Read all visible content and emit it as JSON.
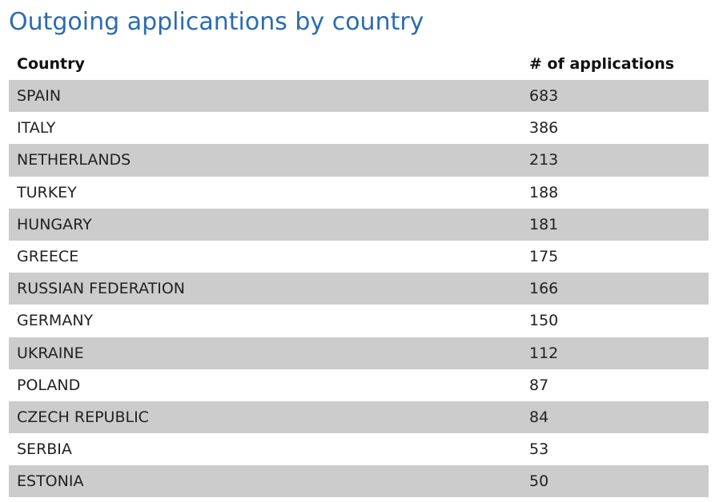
{
  "title": "Outgoing applicantions by country",
  "table": {
    "columns": [
      "Country",
      "# of applications"
    ],
    "rows": [
      {
        "country": "SPAIN",
        "count": "683"
      },
      {
        "country": "ITALY",
        "count": "386"
      },
      {
        "country": "NETHERLANDS",
        "count": "213"
      },
      {
        "country": "TURKEY",
        "count": "188"
      },
      {
        "country": "HUNGARY",
        "count": "181"
      },
      {
        "country": "GREECE",
        "count": "175"
      },
      {
        "country": "RUSSIAN FEDERATION",
        "count": "166"
      },
      {
        "country": "GERMANY",
        "count": "150"
      },
      {
        "country": "UKRAINE",
        "count": "112"
      },
      {
        "country": "POLAND",
        "count": "87"
      },
      {
        "country": "CZECH REPUBLIC",
        "count": "84"
      },
      {
        "country": "SERBIA",
        "count": "53"
      },
      {
        "country": "ESTONIA",
        "count": "50"
      }
    ]
  },
  "colors": {
    "title": "#2b6cb0",
    "row_shade": "#cccccc"
  }
}
